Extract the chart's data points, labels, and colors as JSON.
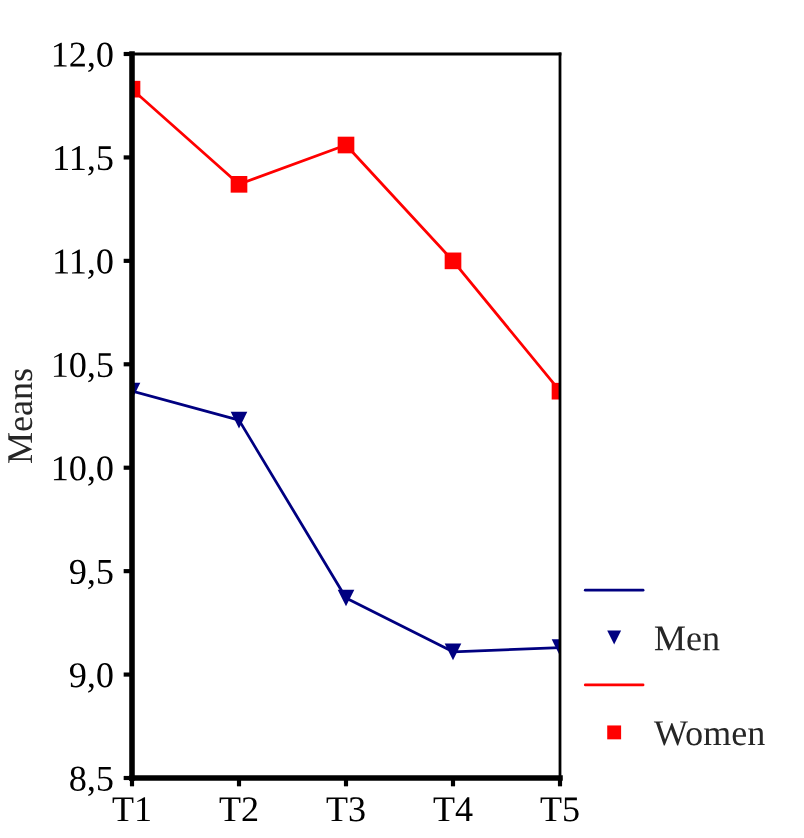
{
  "chart_data": {
    "type": "line",
    "ylabel": "Means",
    "categories": [
      "T1",
      "T2",
      "T3",
      "T4",
      "T5"
    ],
    "series": [
      {
        "name": "Men",
        "color": "#000080",
        "marker": "triangle",
        "values": [
          10.37,
          10.23,
          9.37,
          9.11,
          9.13
        ]
      },
      {
        "name": "Women",
        "color": "#ff0000",
        "marker": "square",
        "values": [
          11.83,
          11.37,
          11.56,
          11.0,
          10.37
        ]
      }
    ],
    "ylim": [
      8.5,
      12.0
    ],
    "yticks": [
      {
        "value": 8.5,
        "label": "8,5"
      },
      {
        "value": 9.0,
        "label": "9,0"
      },
      {
        "value": 9.5,
        "label": "9,5"
      },
      {
        "value": 10.0,
        "label": "10,0"
      },
      {
        "value": 10.5,
        "label": "10,5"
      },
      {
        "value": 11.0,
        "label": "11,0"
      },
      {
        "value": 11.5,
        "label": "11,5"
      },
      {
        "value": 12.0,
        "label": "12,0"
      }
    ],
    "grid": false,
    "legend": "bottom right",
    "line_style": "solid"
  }
}
